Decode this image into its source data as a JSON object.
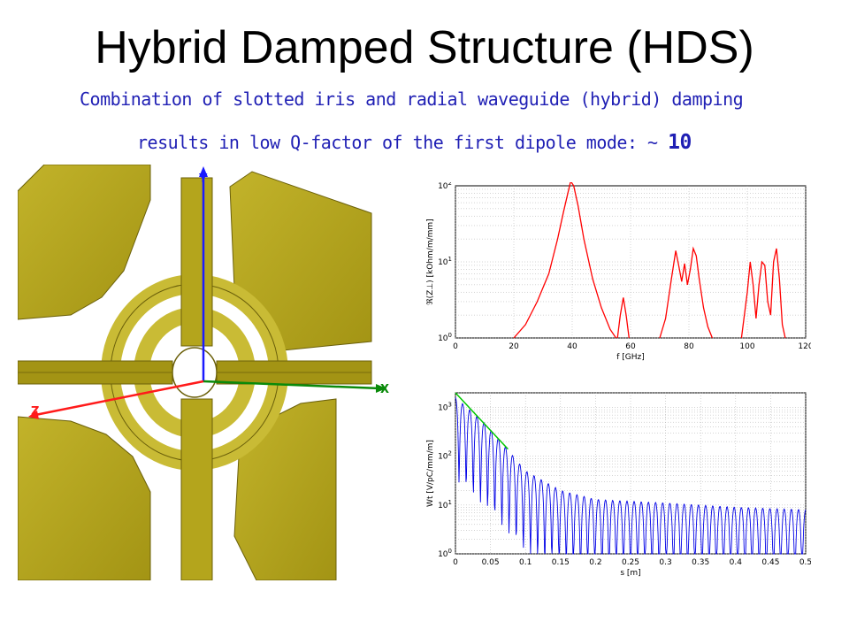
{
  "title": "Hybrid Damped Structure (HDS)",
  "subtitle": {
    "line1": "Combination of slotted iris and radial waveguide (hybrid) damping",
    "line2_prefix": "results in low Q-factor of the first dipole mode: ~ ",
    "q_value": "10"
  },
  "model": {
    "axis_x": "X",
    "axis_y": "Y",
    "axis_z": "Z",
    "colors": {
      "body": "#b4a51c",
      "body_dark": "#8a7d10",
      "axis_x": "#0a8a0a",
      "axis_y": "#1a1aff",
      "axis_z": "#ff1a1a"
    }
  },
  "chart_data": [
    {
      "type": "line",
      "xlabel": "f [GHz]",
      "ylabel": "ℜ(Z⊥) [kOhm/m/mm]",
      "xlim": [
        0,
        120
      ],
      "ylim": [
        1,
        100
      ],
      "yscale": "log",
      "xticks": [
        "0",
        "20",
        "40",
        "60",
        "80",
        "100",
        "120"
      ],
      "yticks": [
        "10^0",
        "10^1",
        "10^2"
      ],
      "grid": true,
      "color": "#ff0000",
      "series": [
        {
          "x": [
            20,
            24,
            28,
            32,
            35,
            37,
            38.5,
            39.5,
            40.5,
            42,
            44,
            47,
            50,
            53,
            55
          ],
          "y": [
            1,
            1.5,
            3,
            7,
            20,
            45,
            80,
            115,
            100,
            55,
            20,
            6,
            2.5,
            1.3,
            1
          ]
        },
        {
          "x": [
            55.5,
            56.5,
            57.5,
            58.5,
            59.5
          ],
          "y": [
            1,
            2,
            3.4,
            2,
            1
          ]
        },
        {
          "x": [
            70,
            72,
            74,
            75.5,
            76.5,
            77.5,
            78.5,
            79.5,
            80.5,
            81.5,
            82.5,
            83.5,
            85,
            86.5,
            88
          ],
          "y": [
            1,
            1.8,
            6,
            14,
            9,
            5.5,
            9.5,
            5,
            8,
            15,
            12,
            6,
            2.5,
            1.4,
            1
          ]
        },
        {
          "x": [
            98,
            100,
            101,
            102,
            103,
            104,
            105,
            106,
            107,
            108,
            109,
            110,
            111,
            112,
            113
          ],
          "y": [
            1,
            4,
            10,
            5,
            1.8,
            5,
            10,
            9,
            3,
            2,
            10,
            15,
            6,
            1.5,
            1
          ]
        }
      ]
    },
    {
      "type": "line",
      "xlabel": "s [m]",
      "ylabel": "Wt [V/pC/mm/m]",
      "xlim": [
        0,
        0.5
      ],
      "ylim": [
        1,
        2000
      ],
      "yscale": "log",
      "xticks": [
        "0",
        "0.05",
        "0.1",
        "0.15",
        "0.2",
        "0.25",
        "0.3",
        "0.35",
        "0.4",
        "0.45",
        "0.5"
      ],
      "yticks": [
        "10^0",
        "10^1",
        "10^2",
        "10^3"
      ],
      "grid": true,
      "colors": {
        "wake": "#0000e6",
        "fit": "#00c800"
      },
      "envelope": {
        "x": [
          0,
          0.02,
          0.04,
          0.06,
          0.08,
          0.1,
          0.15,
          0.2,
          0.3,
          0.4,
          0.5
        ],
        "y": [
          1600,
          900,
          500,
          240,
          110,
          50,
          20,
          13,
          11,
          9,
          8
        ]
      },
      "fit_line": {
        "x": [
          0,
          0.075
        ],
        "y": [
          2000,
          140
        ]
      }
    }
  ]
}
